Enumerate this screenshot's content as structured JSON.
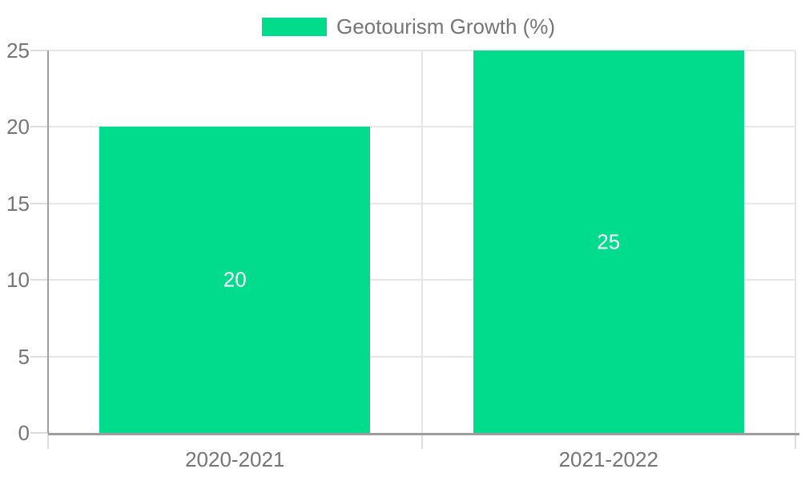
{
  "chart_data": {
    "type": "bar",
    "title": "",
    "legend": {
      "label": "Geotourism Growth (%)",
      "position": "top-center"
    },
    "categories": [
      "2020-2021",
      "2021-2022"
    ],
    "series": [
      {
        "name": "Geotourism Growth (%)",
        "values": [
          20,
          25
        ]
      }
    ],
    "bar_value_labels": [
      "20",
      "25"
    ],
    "xlabel": "",
    "ylabel": "",
    "ylim": [
      0,
      25
    ],
    "yticks": [
      0,
      5,
      10,
      15,
      20,
      25
    ],
    "grid": true,
    "colors": {
      "bar": "#00DB8C",
      "bar_value_text": "#ffffff",
      "axis_text": "#757575",
      "gridline": "#e6e6e6",
      "tick": "#dcdcdc",
      "axis_line": "#9e9e9e",
      "background": "#ffffff"
    }
  }
}
